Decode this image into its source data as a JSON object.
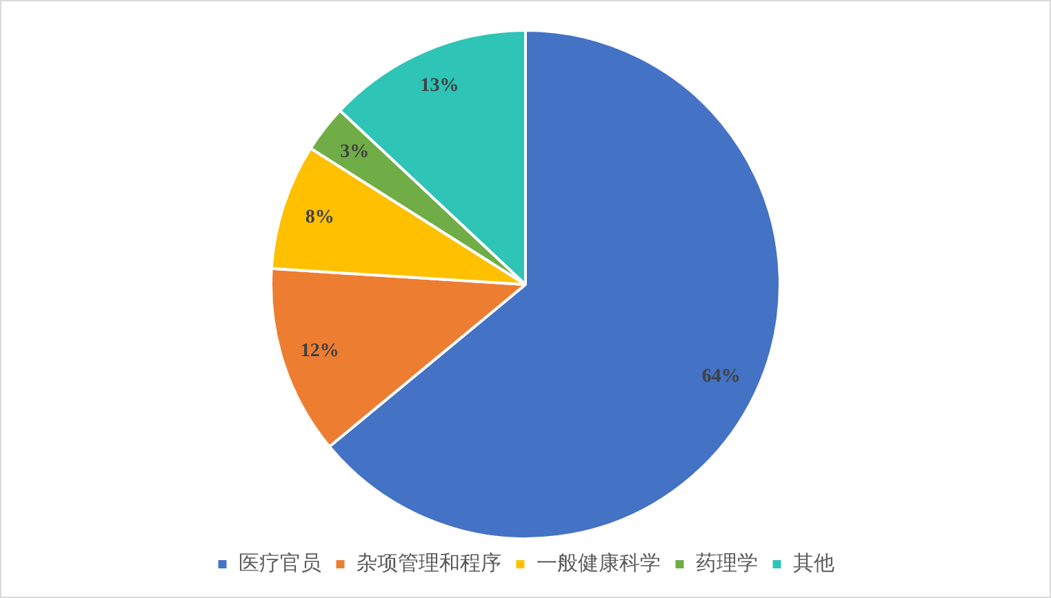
{
  "chart_data": {
    "type": "pie",
    "categories": [
      "医疗官员",
      "杂项管理和程序",
      "一般健康科学",
      "药理学",
      "其他"
    ],
    "values": [
      64,
      12,
      8,
      3,
      13
    ],
    "colors": [
      "#4472c4",
      "#ed7d31",
      "#ffc000",
      "#70ad47",
      "#2ec4b6"
    ],
    "value_labels": [
      "64%",
      "12%",
      "8%",
      "3%",
      "13%"
    ],
    "legend": "bottom"
  }
}
